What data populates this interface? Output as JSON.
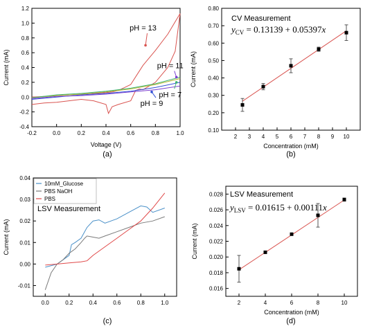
{
  "chart_data": [
    {
      "id": "a",
      "type": "line",
      "panel_label": "(a)",
      "xlabel": "Voltage (V)",
      "ylabel": "Current (mA)",
      "xlim": [
        -0.2,
        1.0
      ],
      "ylim": [
        -0.4,
        1.2
      ],
      "x_ticks": [
        -0.2,
        0.0,
        0.2,
        0.4,
        0.6,
        0.8,
        1.0
      ],
      "x_tick_labels": [
        "-0.2",
        "0.0",
        "0.2",
        "0.4",
        "0.6",
        "0.8",
        "1.0"
      ],
      "y_ticks": [
        -0.4,
        -0.2,
        0.0,
        0.2,
        0.4,
        0.6,
        0.8,
        1.0,
        1.2
      ],
      "y_tick_labels": [
        "-0.4",
        "-0.2",
        "0.0",
        "0.2",
        "0.4",
        "0.6",
        "0.8",
        "1.0",
        "1.2"
      ],
      "series": [
        {
          "color": "#d9534f",
          "x": [
            -0.2,
            -0.1,
            0.0,
            0.1,
            0.2,
            0.3,
            0.4,
            0.45,
            0.5,
            0.55,
            0.6,
            0.65,
            0.7,
            0.8,
            0.9,
            1.0,
            0.96,
            0.9,
            0.8,
            0.7,
            0.67,
            0.64,
            0.6,
            0.5,
            0.45,
            0.42,
            0.4,
            0.3,
            0.2,
            0.1,
            0.0,
            -0.1,
            -0.2
          ],
          "y": [
            0.0,
            0.01,
            0.02,
            0.03,
            0.04,
            0.05,
            0.06,
            0.07,
            0.09,
            0.13,
            0.17,
            0.3,
            0.43,
            0.63,
            0.85,
            1.13,
            0.62,
            0.4,
            0.2,
            0.1,
            0.11,
            0.09,
            -0.05,
            -0.1,
            -0.13,
            -0.22,
            -0.1,
            -0.05,
            -0.03,
            -0.05,
            -0.07,
            -0.08,
            -0.1
          ]
        },
        {
          "color": "#b5b52e",
          "x": [
            -0.2,
            0.0,
            0.2,
            0.4,
            0.6,
            0.8,
            1.0
          ],
          "y": [
            -0.01,
            0.02,
            0.04,
            0.07,
            0.11,
            0.17,
            0.25
          ]
        },
        {
          "color": "#3cb371",
          "x": [
            -0.2,
            0.0,
            0.2,
            0.4,
            0.6,
            0.8,
            1.0
          ],
          "y": [
            -0.01,
            0.03,
            0.05,
            0.08,
            0.12,
            0.18,
            0.27
          ]
        },
        {
          "color": "#2f4fd6",
          "x": [
            -0.2,
            0.0,
            0.2,
            0.4,
            0.6,
            0.8,
            1.0
          ],
          "y": [
            -0.03,
            0.0,
            0.03,
            0.05,
            0.08,
            0.13,
            0.2
          ]
        },
        {
          "color": "#7b3fd0",
          "x": [
            -0.2,
            0.0,
            0.2,
            0.4,
            0.6,
            0.8,
            1.0
          ],
          "y": [
            -0.02,
            0.01,
            0.02,
            0.04,
            0.07,
            0.1,
            0.15
          ]
        }
      ],
      "annotations": [
        {
          "text": "pH = 13",
          "x": 0.7,
          "y": 0.9,
          "arrow_to": [
            0.72,
            0.7
          ],
          "color": "#d9534f"
        },
        {
          "text": "pH = 11",
          "x": 0.92,
          "y": 0.39,
          "arrow_to": [
            0.97,
            0.27
          ],
          "color": "#7b3fd0"
        },
        {
          "text": "pH = 7",
          "x": 0.92,
          "y": 0.0,
          "arrow_to": [
            0.97,
            0.2
          ],
          "color": "#3cb371"
        },
        {
          "text": "pH = 9",
          "x": 0.77,
          "y": -0.12,
          "arrow_to": [
            0.77,
            0.07
          ],
          "color": "#2f4fd6"
        }
      ]
    },
    {
      "id": "b",
      "type": "scatter",
      "panel_label": "(b)",
      "title": "CV Measurement",
      "equation": "yCV = 0.13139 + 0.05397x",
      "xlabel": "Concentration (mM)",
      "ylabel": "Current (mA)",
      "xlim": [
        1.0,
        11.0
      ],
      "ylim": [
        0.1,
        0.8
      ],
      "x_ticks": [
        2,
        3,
        4,
        5,
        6,
        7,
        8,
        9,
        10
      ],
      "x_tick_labels": [
        "2",
        "3",
        "4",
        "5",
        "6",
        "7",
        "8",
        "9",
        "10"
      ],
      "y_ticks": [
        0.1,
        0.2,
        0.3,
        0.4,
        0.5,
        0.6,
        0.7,
        0.8
      ],
      "y_tick_labels": [
        "0.10",
        "0.20",
        "0.30",
        "0.40",
        "0.50",
        "0.60",
        "0.70",
        "0.80"
      ],
      "x": [
        2.5,
        4,
        6,
        8,
        10
      ],
      "y": [
        0.245,
        0.35,
        0.47,
        0.565,
        0.66
      ],
      "err": [
        0.037,
        0.018,
        0.04,
        0.012,
        0.045
      ],
      "fit": {
        "intercept": 0.13139,
        "slope": 0.05397,
        "x_range": [
          2.5,
          10
        ],
        "color": "#d9534f"
      }
    },
    {
      "id": "c",
      "type": "line",
      "panel_label": "(c)",
      "title": "LSV Measurement",
      "xlabel": "",
      "ylabel": "Current (mA)",
      "xlim": [
        -0.1,
        1.1
      ],
      "ylim": [
        -0.015,
        0.04
      ],
      "x_ticks": [
        0.0,
        0.2,
        0.4,
        0.6,
        0.8,
        1.0
      ],
      "x_tick_labels": [
        "0.0",
        "0.2",
        "0.4",
        "0.6",
        "0.8",
        "1.0"
      ],
      "y_ticks": [
        -0.01,
        0.0,
        0.01,
        0.02,
        0.03,
        0.04
      ],
      "y_tick_labels": [
        "-0.01",
        "0.00",
        "0.01",
        "0.02",
        "0.03",
        "0.04"
      ],
      "series": [
        {
          "name": "10mM_Glucose",
          "color": "#4a90c8",
          "x": [
            0.0,
            0.1,
            0.2,
            0.22,
            0.25,
            0.3,
            0.35,
            0.4,
            0.45,
            0.5,
            0.6,
            0.7,
            0.8,
            0.85,
            0.9,
            1.0
          ],
          "y": [
            -0.0015,
            0.0,
            0.004,
            0.009,
            0.01,
            0.012,
            0.017,
            0.02,
            0.0205,
            0.019,
            0.021,
            0.024,
            0.027,
            0.0265,
            0.024,
            0.026
          ]
        },
        {
          "name": "PBS NaOH",
          "color": "#7a7a7a",
          "x": [
            0.0,
            0.05,
            0.1,
            0.15,
            0.2,
            0.25,
            0.3,
            0.33,
            0.35,
            0.4,
            0.45,
            0.5,
            0.6,
            0.7,
            0.8,
            0.9,
            1.0
          ],
          "y": [
            -0.012,
            -0.004,
            0.0,
            0.002,
            0.005,
            0.007,
            0.01,
            0.012,
            0.013,
            0.0125,
            0.012,
            0.013,
            0.015,
            0.017,
            0.019,
            0.02,
            0.022
          ]
        },
        {
          "name": "PBS",
          "color": "#e04848",
          "x": [
            0.0,
            0.1,
            0.2,
            0.3,
            0.35,
            0.4,
            0.5,
            0.6,
            0.7,
            0.8,
            0.9,
            1.0
          ],
          "y": [
            -0.0005,
            0.0,
            0.0005,
            0.001,
            0.0015,
            0.004,
            0.008,
            0.012,
            0.016,
            0.02,
            0.026,
            0.033
          ]
        }
      ]
    },
    {
      "id": "d",
      "type": "scatter",
      "panel_label": "(d)",
      "title": "LSV Measurement",
      "equation": "yLSV = 0.01615 + 0.00111x",
      "xlabel": "Concentration (mM)",
      "ylabel": "Current (mA)",
      "xlim": [
        1.0,
        11.0
      ],
      "ylim": [
        0.015,
        0.029
      ],
      "x_ticks": [
        2,
        4,
        6,
        8,
        10
      ],
      "x_tick_labels": [
        "2",
        "4",
        "6",
        "8",
        "10"
      ],
      "y_ticks": [
        0.016,
        0.018,
        0.02,
        0.022,
        0.024,
        0.026,
        0.028
      ],
      "y_tick_labels": [
        "0.016",
        "0.018",
        "0.020",
        "0.022",
        "0.024",
        "0.026",
        "0.028"
      ],
      "x": [
        2,
        4,
        6,
        8,
        10
      ],
      "y": [
        0.0185,
        0.0206,
        0.0229,
        0.0253,
        0.0273
      ],
      "err": [
        0.0017,
        0.0001,
        0.0001,
        0.0015,
        0.0002
      ],
      "fit": {
        "intercept": 0.01615,
        "slope": 0.00111,
        "x_range": [
          2,
          10
        ],
        "color": "#d9534f"
      }
    }
  ]
}
